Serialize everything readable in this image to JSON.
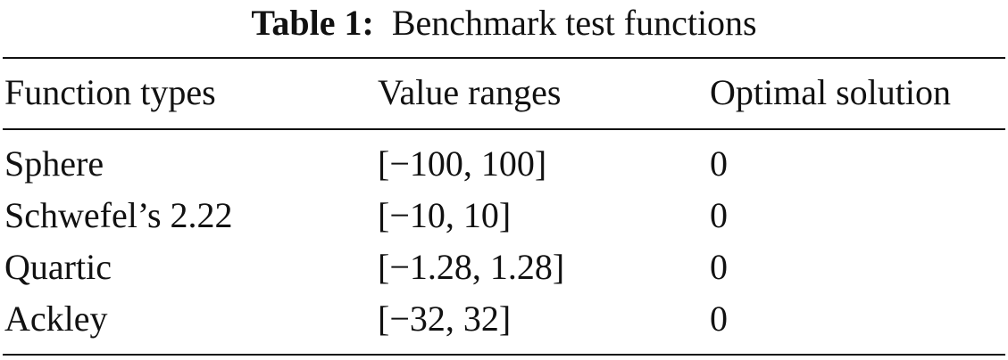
{
  "table": {
    "label": "Table 1:",
    "caption": "Benchmark test functions",
    "headers": [
      "Function types",
      "Value ranges",
      "Optimal solution"
    ],
    "rows": [
      [
        "Sphere",
        "[−100, 100]",
        "0"
      ],
      [
        "Schwefel’s 2.22",
        "[−10, 10]",
        "0"
      ],
      [
        "Quartic",
        "[−1.28, 1.28]",
        "0"
      ],
      [
        "Ackley",
        "[−32, 32]",
        "0"
      ]
    ]
  }
}
